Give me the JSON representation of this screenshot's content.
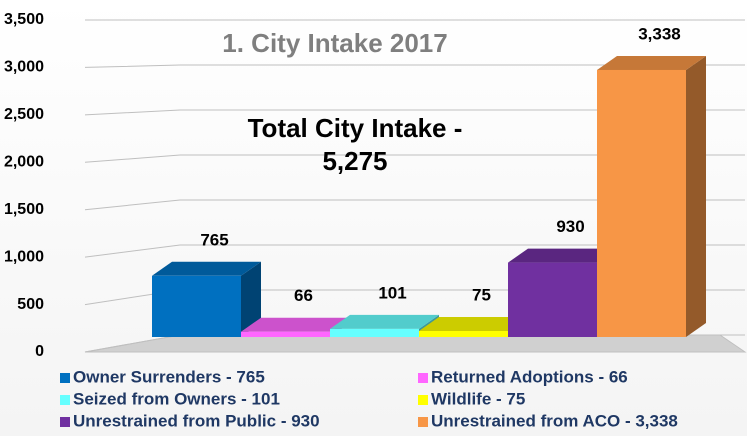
{
  "chart_data": {
    "type": "bar3d",
    "title": "1. City Intake 2017",
    "annotation": [
      "Total City Intake -",
      "5,275"
    ],
    "categories": [
      "Owner Surrenders - 765",
      "Returned Adoptions - 66",
      "Seized from Owners - 101",
      "Wildlife - 75",
      "Unrestrained from Public - 930",
      "Unrestrained from ACO - 3,338"
    ],
    "values": [
      765,
      66,
      101,
      75,
      930,
      3338
    ],
    "value_labels": [
      "765",
      "66",
      "101",
      "75",
      "930",
      "3,338"
    ],
    "colors": [
      "#0070c0",
      "#ff66ff",
      "#66ffff",
      "#ffff00",
      "#7030a0",
      "#f79646"
    ],
    "ylim": [
      0,
      3500
    ],
    "yticks": [
      0,
      500,
      {
        "value": 1000,
        "label": "1,000"
      },
      {
        "value": 1500,
        "label": "1,500"
      },
      {
        "value": 2000,
        "label": "2,000"
      },
      {
        "value": 2500,
        "label": "2,500"
      },
      {
        "value": 3000,
        "label": "3,000"
      },
      {
        "value": 3500,
        "label": "3,500"
      }
    ],
    "grid": true,
    "legend": "bottom"
  }
}
